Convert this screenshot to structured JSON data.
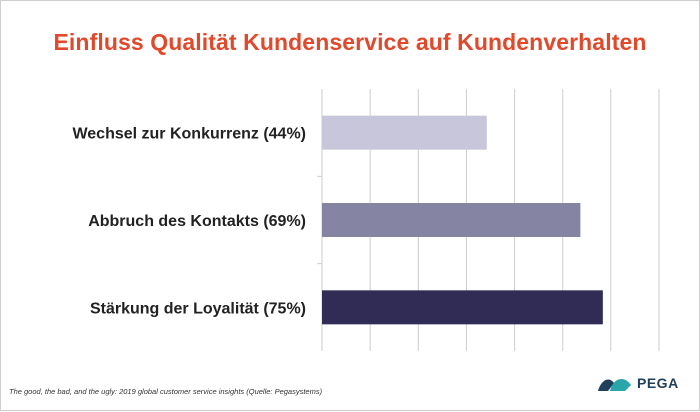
{
  "chart_data": {
    "type": "bar",
    "orientation": "horizontal",
    "title": "Einfluss Qualität Kundenservice auf Kundenverhalten",
    "categories": [
      "Wechsel zur Konkurrenz (44%)",
      "Abbruch des Kontakts (69%)",
      "Stärkung der Loyalität (75%)"
    ],
    "values": [
      44,
      69,
      75
    ],
    "unit": "%",
    "xlim": [
      0,
      90
    ],
    "x_gridlines": [
      0,
      12.86,
      25.71,
      38.57,
      51.43,
      64.29,
      77.14,
      90
    ],
    "grid": true,
    "bar_colors": [
      "#c8c6da",
      "#8584a3",
      "#302c55"
    ]
  },
  "footnote": "The good, the bad, and the ugly: 2019 global customer service insights (Quelle: Pegasystems)",
  "logo": {
    "text": "PEGA",
    "icon": "pega-logo-icon",
    "color": "#1f3f5a"
  },
  "colors": {
    "title": "#e0492b",
    "grid": "#cccccc",
    "label": "#222222"
  }
}
